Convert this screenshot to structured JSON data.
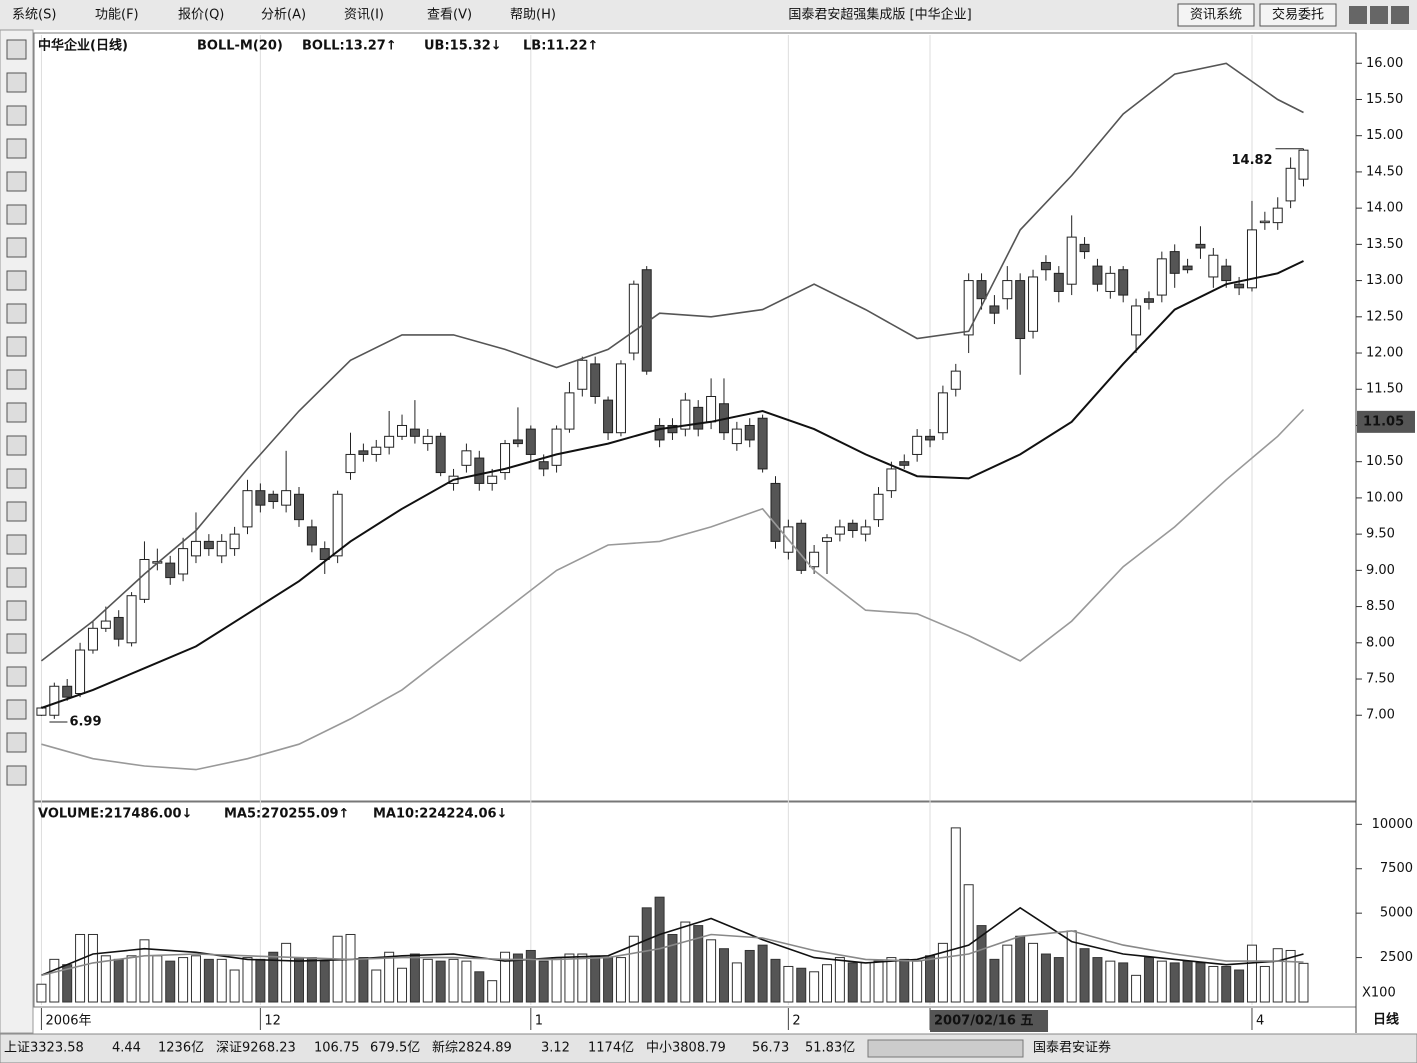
{
  "menu": [
    "系统(S)",
    "功能(F)",
    "报价(Q)",
    "分析(A)",
    "资讯(I)",
    "查看(V)",
    "帮助(H)"
  ],
  "window_title": "国泰君安超强集成版 [中华企业]",
  "buttons": [
    "资讯系统",
    "交易委托"
  ],
  "period": "日线",
  "status_bar": [
    "上证3323.58",
    "4.44",
    "1236亿",
    "深证9268.23",
    "106.75",
    "679.5亿",
    "新综2824.89",
    "3.12",
    "1174亿",
    "中小3808.79",
    "56.73",
    "51.83亿",
    "国泰君安证券"
  ],
  "chart_data": [
    {
      "type": "candlestick",
      "title": "中华企业(日线)",
      "indicator": "BOLL-M(20)",
      "open": [
        7.0,
        7.0,
        7.4,
        7.3,
        7.9,
        8.2,
        8.35,
        8.0,
        8.6,
        9.1,
        9.1,
        8.95,
        9.2,
        9.4,
        9.2,
        9.3,
        9.6,
        10.1,
        10.05,
        9.9,
        10.05,
        9.6,
        9.3,
        9.2,
        10.35,
        10.65,
        10.6,
        10.7,
        10.85,
        10.95,
        10.75,
        10.85,
        10.2,
        10.45,
        10.55,
        10.2,
        10.35,
        10.8,
        10.95,
        10.5,
        10.45,
        10.95,
        11.5,
        11.85,
        11.35,
        10.9,
        12.0,
        13.15,
        11.0,
        11.0,
        10.95,
        11.25,
        11.05,
        11.3,
        10.75,
        11.0,
        11.1,
        10.2,
        9.25,
        9.65,
        9.05,
        9.4,
        9.5,
        9.65,
        9.5,
        9.7,
        10.1,
        10.5,
        10.6,
        10.85,
        10.9,
        11.5,
        12.25,
        13.0,
        12.65,
        12.75,
        13.0,
        12.3,
        13.25,
        13.1,
        12.95,
        13.5,
        13.2,
        12.85,
        13.15,
        12.25,
        12.75,
        12.8,
        13.4,
        13.2,
        13.5,
        13.05,
        13.2,
        12.95,
        12.9,
        13.8,
        13.8,
        14.1,
        14.4
      ],
      "high": [
        7.12,
        7.45,
        7.5,
        8.0,
        8.3,
        8.5,
        8.45,
        8.7,
        9.4,
        9.3,
        9.2,
        9.45,
        9.8,
        9.5,
        9.5,
        9.6,
        10.25,
        10.2,
        10.1,
        10.65,
        10.15,
        9.7,
        9.4,
        10.1,
        10.9,
        10.75,
        10.8,
        11.2,
        11.15,
        11.35,
        10.95,
        10.9,
        10.4,
        10.75,
        10.65,
        10.4,
        10.8,
        11.25,
        11.0,
        10.6,
        11.0,
        11.6,
        11.95,
        11.95,
        11.4,
        11.9,
        13.0,
        13.2,
        11.1,
        11.1,
        11.45,
        11.35,
        11.65,
        11.65,
        11.05,
        11.1,
        11.15,
        10.3,
        9.7,
        9.7,
        9.35,
        9.5,
        9.7,
        9.7,
        9.7,
        10.15,
        10.5,
        10.6,
        10.95,
        10.95,
        11.55,
        11.85,
        13.1,
        13.1,
        12.8,
        13.2,
        13.1,
        13.15,
        13.35,
        13.2,
        13.9,
        13.6,
        13.3,
        13.2,
        13.2,
        12.75,
        12.85,
        13.4,
        13.5,
        13.3,
        13.75,
        13.45,
        13.3,
        13.05,
        14.1,
        13.95,
        14.15,
        14.7,
        14.82
      ],
      "low": [
        6.99,
        6.95,
        7.2,
        7.25,
        7.85,
        8.15,
        7.95,
        7.95,
        8.55,
        9.0,
        8.8,
        8.85,
        9.1,
        9.2,
        9.1,
        9.2,
        9.5,
        9.8,
        9.85,
        9.8,
        9.6,
        9.25,
        8.95,
        9.1,
        10.25,
        10.5,
        10.5,
        10.6,
        10.8,
        10.75,
        10.65,
        10.3,
        10.1,
        10.35,
        10.1,
        10.1,
        10.25,
        10.7,
        10.5,
        10.3,
        10.35,
        10.9,
        11.4,
        11.3,
        10.8,
        10.85,
        11.9,
        11.7,
        10.7,
        10.8,
        10.85,
        10.85,
        10.95,
        10.8,
        10.65,
        10.7,
        10.35,
        9.3,
        9.15,
        8.95,
        8.95,
        8.95,
        9.4,
        9.45,
        9.4,
        9.6,
        10.0,
        10.4,
        10.5,
        10.7,
        10.8,
        11.4,
        12.0,
        12.6,
        12.4,
        12.6,
        11.7,
        12.2,
        13.0,
        12.7,
        12.8,
        13.3,
        12.85,
        12.75,
        12.7,
        12.0,
        12.6,
        12.7,
        12.9,
        13.1,
        13.3,
        12.9,
        12.9,
        12.8,
        12.85,
        13.7,
        13.7,
        14.0,
        14.3
      ],
      "close": [
        7.1,
        7.4,
        7.25,
        7.9,
        8.2,
        8.3,
        8.05,
        8.65,
        9.15,
        9.12,
        8.9,
        9.3,
        9.4,
        9.3,
        9.4,
        9.5,
        10.1,
        9.9,
        9.95,
        10.1,
        9.7,
        9.35,
        9.15,
        10.05,
        10.6,
        10.6,
        10.7,
        10.85,
        11.0,
        10.85,
        10.85,
        10.35,
        10.3,
        10.65,
        10.2,
        10.3,
        10.75,
        10.75,
        10.6,
        10.4,
        10.95,
        11.45,
        11.9,
        11.4,
        10.9,
        11.85,
        12.95,
        11.75,
        10.8,
        10.9,
        11.35,
        10.95,
        11.4,
        10.9,
        10.95,
        10.8,
        10.4,
        9.4,
        9.6,
        9.0,
        9.25,
        9.45,
        9.6,
        9.55,
        9.6,
        10.05,
        10.4,
        10.45,
        10.85,
        10.8,
        11.45,
        11.75,
        13.0,
        12.75,
        12.55,
        13.0,
        12.2,
        13.05,
        13.15,
        12.85,
        13.6,
        13.4,
        12.95,
        13.1,
        12.8,
        12.65,
        12.7,
        13.3,
        13.1,
        13.15,
        13.45,
        13.35,
        13.0,
        12.9,
        13.7,
        13.82,
        14.0,
        14.55,
        14.8
      ],
      "series": [
        {
          "name": "BOLL:13.27↑",
          "color": "#111111",
          "x": [
            0,
            4,
            8,
            12,
            16,
            20,
            24,
            28,
            32,
            36,
            40,
            44,
            48,
            52,
            56,
            60,
            64,
            68,
            72,
            76,
            80,
            84,
            88,
            92,
            96,
            98
          ],
          "values": [
            7.1,
            7.35,
            7.65,
            7.95,
            8.4,
            8.85,
            9.4,
            9.85,
            10.25,
            10.4,
            10.6,
            10.75,
            10.95,
            11.05,
            11.2,
            10.95,
            10.6,
            10.3,
            10.27,
            10.6,
            11.05,
            11.85,
            12.6,
            12.95,
            13.1,
            13.27
          ]
        },
        {
          "name": "UB:15.32↓",
          "color": "#555555",
          "x": [
            0,
            4,
            8,
            12,
            16,
            20,
            24,
            28,
            32,
            36,
            40,
            44,
            48,
            52,
            56,
            60,
            64,
            68,
            72,
            76,
            80,
            84,
            88,
            92,
            96,
            98
          ],
          "values": [
            7.75,
            8.3,
            8.95,
            9.55,
            10.4,
            11.2,
            11.9,
            12.25,
            12.25,
            12.05,
            11.8,
            12.05,
            12.55,
            12.5,
            12.6,
            12.95,
            12.6,
            12.2,
            12.3,
            13.7,
            14.45,
            15.3,
            15.85,
            16.0,
            15.5,
            15.32
          ]
        },
        {
          "name": "LB:11.22↑",
          "color": "#999999",
          "x": [
            0,
            4,
            8,
            12,
            16,
            20,
            24,
            28,
            32,
            36,
            40,
            44,
            48,
            52,
            56,
            60,
            64,
            68,
            72,
            76,
            80,
            84,
            88,
            92,
            96,
            98
          ],
          "values": [
            6.6,
            6.4,
            6.3,
            6.25,
            6.4,
            6.6,
            6.95,
            7.35,
            7.9,
            8.45,
            9.0,
            9.35,
            9.4,
            9.6,
            9.85,
            9.0,
            8.45,
            8.4,
            8.1,
            7.75,
            8.3,
            9.05,
            9.6,
            10.25,
            10.85,
            11.22
          ]
        }
      ],
      "max_label": 14.82,
      "min_label": 6.99,
      "cursor_value": 11.05,
      "xlim": [
        -0.5,
        102
      ],
      "ylim": [
        5.83,
        16.39
      ],
      "yticks": [
        {
          "value": 7,
          "label": "7.00"
        },
        {
          "value": 7.5,
          "label": "7.50"
        },
        {
          "value": 8,
          "label": "8.00"
        },
        {
          "value": 8.5,
          "label": "8.50"
        },
        {
          "value": 9,
          "label": "9.00"
        },
        {
          "value": 9.5,
          "label": "9.50"
        },
        {
          "value": 10,
          "label": "10.00"
        },
        {
          "value": 10.5,
          "label": "10.50"
        },
        {
          "value": 11,
          "label": "11.00"
        },
        {
          "value": 11.5,
          "label": "11.50"
        },
        {
          "value": 12,
          "label": "12.00"
        },
        {
          "value": 12.5,
          "label": "12.50"
        },
        {
          "value": 13,
          "label": "13.00"
        },
        {
          "value": 13.5,
          "label": "13.50"
        },
        {
          "value": 14,
          "label": "14.00"
        },
        {
          "value": 14.5,
          "label": "14.50"
        },
        {
          "value": 15,
          "label": "15.00"
        },
        {
          "value": 15.5,
          "label": "15.50"
        },
        {
          "value": 16,
          "label": "16.00"
        }
      ],
      "xticks": [
        {
          "value": 0,
          "label": "2006年"
        },
        {
          "value": 17,
          "label": "12"
        },
        {
          "value": 38,
          "label": "1"
        },
        {
          "value": 58,
          "label": "2"
        },
        {
          "value": 69,
          "label": "2007/02/16 五"
        },
        {
          "value": 94,
          "label": "4"
        }
      ]
    },
    {
      "type": "bar",
      "title": "VOLUME:217486.00↓",
      "y_unit": "X100",
      "values": [
        1000,
        2400,
        2100,
        3800,
        3800,
        2600,
        2400,
        2600,
        3500,
        2600,
        2300,
        2500,
        2600,
        2400,
        2400,
        1800,
        2500,
        2400,
        2800,
        3300,
        2500,
        2500,
        2300,
        3700,
        3800,
        2500,
        1800,
        2800,
        1900,
        2700,
        2400,
        2300,
        2400,
        2300,
        1700,
        1200,
        2800,
        2700,
        2900,
        2300,
        2500,
        2700,
        2700,
        2600,
        2500,
        2500,
        3700,
        5300,
        5900,
        3800,
        4500,
        4300,
        3500,
        3000,
        2200,
        2900,
        3200,
        2400,
        2000,
        1900,
        1700,
        2100,
        2500,
        2200,
        2200,
        2300,
        2500,
        2400,
        2300,
        2600,
        3300,
        9800,
        6600,
        4300,
        2400,
        3200,
        3700,
        3300,
        2700,
        2500,
        4000,
        3000,
        2500,
        2300,
        2200,
        1500,
        2500,
        2300,
        2200,
        2300,
        2200,
        2000,
        2000,
        1800,
        3200,
        2000,
        3000,
        2900,
        2175
      ],
      "series": [
        {
          "name": "MA5:270255.09↑",
          "color": "#111111",
          "x": [
            0,
            4,
            8,
            12,
            16,
            20,
            24,
            28,
            32,
            36,
            40,
            44,
            48,
            52,
            56,
            60,
            64,
            68,
            72,
            76,
            80,
            84,
            88,
            92,
            96,
            98
          ],
          "values": [
            1500,
            2700,
            3000,
            2800,
            2400,
            2300,
            2400,
            2600,
            2700,
            2300,
            2500,
            2600,
            3800,
            4700,
            3500,
            2500,
            2200,
            2400,
            3200,
            5300,
            3400,
            2700,
            2400,
            2100,
            2300,
            2703
          ]
        },
        {
          "name": "MA10:224224.06↓",
          "color": "#888888",
          "x": [
            0,
            4,
            8,
            12,
            16,
            20,
            24,
            28,
            32,
            36,
            40,
            44,
            48,
            52,
            56,
            60,
            64,
            68,
            72,
            76,
            80,
            84,
            88,
            92,
            96,
            98
          ],
          "values": [
            1500,
            2200,
            2600,
            2700,
            2600,
            2500,
            2400,
            2500,
            2500,
            2400,
            2400,
            2500,
            3000,
            3800,
            3600,
            2900,
            2400,
            2300,
            2700,
            3700,
            4000,
            3200,
            2700,
            2300,
            2300,
            2242
          ]
        }
      ],
      "xlim": [
        -0.5,
        102
      ],
      "ylim": [
        0,
        11200
      ],
      "yticks": [
        2500,
        5000,
        7500,
        10000
      ]
    }
  ]
}
